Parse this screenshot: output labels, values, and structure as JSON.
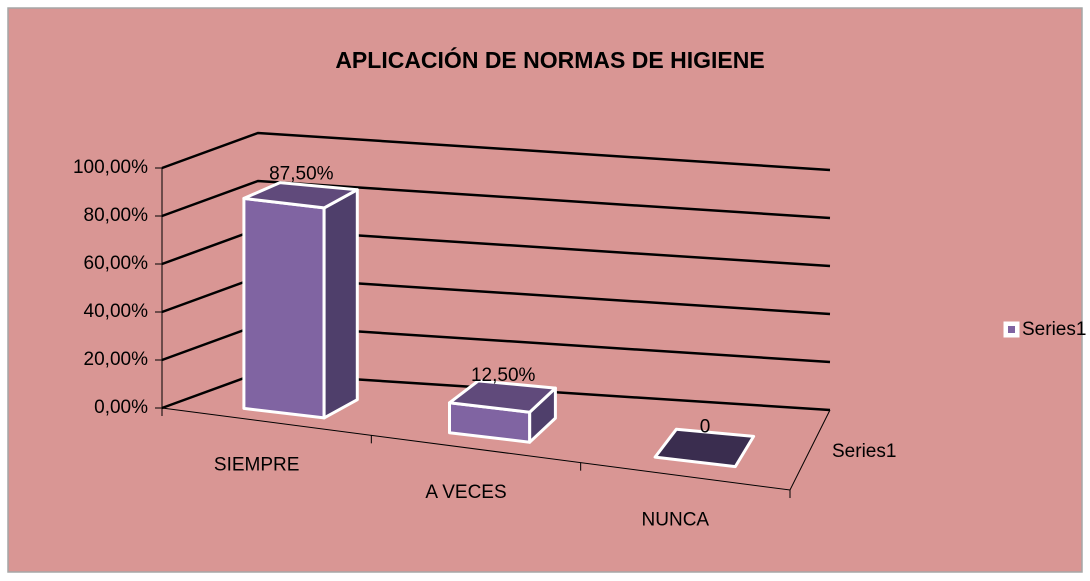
{
  "chart_data": {
    "type": "bar",
    "title": "APLICACIÓN DE NORMAS DE HIGIENE",
    "categories": [
      "SIEMPRE",
      "A VECES",
      "NUNCA"
    ],
    "series": [
      {
        "name": "Series1",
        "color": "#8064a2",
        "values": [
          87.5,
          12.5,
          0
        ],
        "value_labels": [
          "87,50%",
          "12,50%",
          "0"
        ]
      }
    ],
    "ylim": [
      0,
      100
    ],
    "yticks": [
      {
        "value": 0,
        "label": "0,00%"
      },
      {
        "value": 20,
        "label": "20,00%"
      },
      {
        "value": 40,
        "label": "40,00%"
      },
      {
        "value": 60,
        "label": "60,00%"
      },
      {
        "value": 80,
        "label": "80,00%"
      },
      {
        "value": 100,
        "label": "100,00%"
      }
    ],
    "grid": true,
    "legend": "right"
  }
}
